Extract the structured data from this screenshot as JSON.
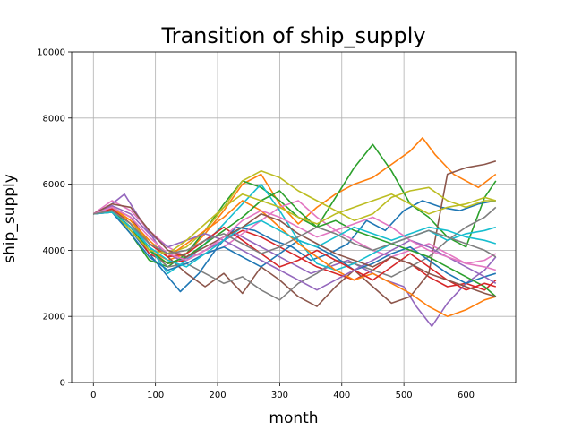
{
  "chart_data": {
    "type": "line",
    "title": "Transition of ship_supply",
    "xlabel": "month",
    "ylabel": "ship_supply",
    "xlim": [
      -35,
      680
    ],
    "ylim": [
      0,
      10000
    ],
    "xticks": [
      "0",
      "100",
      "200",
      "300",
      "400",
      "500",
      "600"
    ],
    "yticks": [
      "0",
      "2000",
      "4000",
      "6000",
      "8000",
      "10000"
    ],
    "grid": true,
    "legend": "none",
    "series": [
      {
        "color": "#1f77b4",
        "x": [
          0,
          30,
          60,
          90,
          120,
          140,
          170,
          200,
          230,
          260,
          290,
          320,
          350,
          380,
          410,
          440,
          470,
          500,
          530,
          560,
          590,
          620,
          648
        ],
        "values": [
          5100,
          5250,
          4600,
          3900,
          3200,
          2750,
          3300,
          4100,
          4700,
          4600,
          4300,
          4100,
          3700,
          3900,
          4200,
          4900,
          4600,
          5200,
          5500,
          5300,
          5200,
          5400,
          5500
        ]
      },
      {
        "color": "#ff7f0e",
        "x": [
          0,
          30,
          60,
          90,
          120,
          150,
          180,
          210,
          240,
          270,
          300,
          330,
          360,
          390,
          420,
          450,
          480,
          510,
          530,
          550,
          580,
          600,
          620,
          648
        ],
        "values": [
          5100,
          5300,
          4800,
          4000,
          3700,
          3900,
          4500,
          5200,
          6000,
          6300,
          5400,
          4800,
          5300,
          5700,
          6000,
          6200,
          6600,
          7000,
          7400,
          6900,
          6300,
          6100,
          5900,
          6300
        ]
      },
      {
        "color": "#2ca02c",
        "x": [
          0,
          30,
          60,
          90,
          120,
          150,
          180,
          210,
          240,
          270,
          300,
          330,
          360,
          390,
          420,
          450,
          480,
          510,
          540,
          570,
          600,
          630,
          648
        ],
        "values": [
          5100,
          5200,
          4500,
          3700,
          3500,
          3900,
          4600,
          5400,
          6100,
          5900,
          5500,
          5000,
          4700,
          5600,
          6500,
          7200,
          6400,
          5400,
          5000,
          4400,
          4100,
          5600,
          6100
        ]
      },
      {
        "color": "#d62728",
        "x": [
          0,
          30,
          60,
          90,
          120,
          150,
          180,
          210,
          240,
          270,
          300,
          330,
          360,
          390,
          420,
          450,
          480,
          510,
          540,
          570,
          600,
          630,
          648
        ],
        "values": [
          5100,
          5150,
          4700,
          3900,
          3600,
          3700,
          4000,
          4300,
          4600,
          4400,
          4100,
          3800,
          3500,
          3300,
          3100,
          3400,
          3800,
          3600,
          3200,
          2900,
          3000,
          2800,
          3100
        ]
      },
      {
        "color": "#9467bd",
        "x": [
          0,
          30,
          50,
          80,
          110,
          140,
          170,
          200,
          230,
          260,
          290,
          320,
          350,
          380,
          410,
          440,
          470,
          500,
          520,
          545,
          570,
          600,
          630,
          648
        ],
        "values": [
          5100,
          5400,
          5700,
          4800,
          4000,
          3700,
          3900,
          4200,
          4500,
          4200,
          3900,
          3600,
          3300,
          3500,
          3700,
          3400,
          3100,
          2900,
          2300,
          1700,
          2400,
          3000,
          3400,
          3800
        ]
      },
      {
        "color": "#8c564b",
        "x": [
          0,
          30,
          60,
          90,
          120,
          150,
          180,
          210,
          240,
          270,
          300,
          330,
          360,
          390,
          420,
          450,
          480,
          510,
          540,
          570,
          600,
          630,
          648
        ],
        "values": [
          5100,
          5300,
          5000,
          4200,
          3800,
          3300,
          2900,
          3300,
          2700,
          3500,
          3100,
          2600,
          2300,
          2900,
          3400,
          2900,
          2400,
          2600,
          3300,
          6300,
          6500,
          6600,
          6700
        ]
      },
      {
        "color": "#e377c2",
        "x": [
          0,
          30,
          60,
          90,
          120,
          150,
          180,
          210,
          240,
          270,
          300,
          330,
          360,
          390,
          420,
          450,
          480,
          510,
          540,
          570,
          600,
          630,
          648
        ],
        "values": [
          5100,
          5500,
          5200,
          4600,
          4100,
          3800,
          3900,
          4100,
          4500,
          4900,
          5300,
          5500,
          5000,
          4600,
          4300,
          4000,
          3800,
          4000,
          4200,
          3900,
          3600,
          3700,
          3900
        ]
      },
      {
        "color": "#7f7f7f",
        "x": [
          0,
          30,
          60,
          90,
          120,
          150,
          180,
          210,
          240,
          270,
          300,
          330,
          360,
          390,
          420,
          450,
          480,
          510,
          540,
          570,
          600,
          630,
          648
        ],
        "values": [
          5100,
          5200,
          4700,
          4000,
          3500,
          3600,
          3300,
          3000,
          3200,
          2800,
          2500,
          3000,
          3300,
          3700,
          3600,
          3400,
          3200,
          3500,
          3800,
          4300,
          4700,
          5000,
          5300
        ]
      },
      {
        "color": "#bcbd22",
        "x": [
          0,
          30,
          60,
          90,
          120,
          150,
          180,
          210,
          240,
          270,
          300,
          330,
          360,
          390,
          420,
          450,
          480,
          510,
          540,
          570,
          600,
          630,
          648
        ],
        "values": [
          5100,
          5250,
          4900,
          4200,
          3900,
          4100,
          4600,
          5300,
          6100,
          6400,
          6200,
          5800,
          5500,
          5200,
          4900,
          5100,
          5600,
          5800,
          5900,
          5500,
          5300,
          5500,
          5500
        ]
      },
      {
        "color": "#17becf",
        "x": [
          0,
          30,
          60,
          90,
          120,
          150,
          180,
          210,
          240,
          270,
          300,
          330,
          360,
          390,
          420,
          450,
          480,
          510,
          540,
          570,
          600,
          630,
          648
        ],
        "values": [
          5100,
          5200,
          4800,
          4100,
          3300,
          3700,
          4200,
          4800,
          5400,
          6000,
          5200,
          4300,
          3600,
          3400,
          3600,
          3900,
          4200,
          4400,
          4600,
          4300,
          4500,
          4600,
          4700
        ]
      },
      {
        "color": "#1f77b4",
        "x": [
          0,
          30,
          60,
          90,
          120,
          150,
          180,
          210,
          240,
          270,
          300,
          330,
          360,
          390,
          420,
          450,
          480,
          510,
          540,
          570,
          600,
          630,
          648
        ],
        "values": [
          5100,
          5150,
          4500,
          3800,
          3400,
          3600,
          3900,
          4100,
          3800,
          3500,
          3900,
          4300,
          4100,
          3800,
          3400,
          3600,
          3900,
          4100,
          3700,
          3300,
          3000,
          3200,
          3300
        ]
      },
      {
        "color": "#ff7f0e",
        "x": [
          0,
          30,
          60,
          90,
          120,
          150,
          180,
          210,
          240,
          270,
          300,
          330,
          360,
          390,
          420,
          450,
          480,
          510,
          540,
          570,
          600,
          630,
          648
        ],
        "values": [
          5100,
          5300,
          4900,
          4300,
          3800,
          4200,
          4600,
          5000,
          5500,
          5200,
          4700,
          4200,
          3800,
          3400,
          3100,
          3300,
          3000,
          2700,
          2300,
          2000,
          2200,
          2500,
          2600
        ]
      },
      {
        "color": "#2ca02c",
        "x": [
          0,
          30,
          60,
          90,
          120,
          150,
          180,
          210,
          240,
          270,
          300,
          330,
          360,
          390,
          420,
          450,
          480,
          510,
          540,
          570,
          600,
          630,
          648
        ],
        "values": [
          5100,
          5200,
          4700,
          4000,
          3600,
          3800,
          4200,
          4600,
          5000,
          5500,
          5800,
          5200,
          4700,
          4900,
          4600,
          4400,
          4200,
          4000,
          3800,
          3500,
          3200,
          2900,
          2600
        ]
      },
      {
        "color": "#d62728",
        "x": [
          0,
          30,
          60,
          90,
          120,
          150,
          180,
          210,
          240,
          270,
          300,
          330,
          360,
          390,
          420,
          450,
          480,
          510,
          540,
          570,
          600,
          630,
          648
        ],
        "values": [
          5100,
          5250,
          4800,
          4200,
          3800,
          3900,
          4300,
          4700,
          4300,
          3900,
          3500,
          3700,
          4000,
          3700,
          3400,
          3100,
          3500,
          3900,
          3500,
          3100,
          2800,
          3000,
          2900
        ]
      },
      {
        "color": "#9467bd",
        "x": [
          0,
          30,
          60,
          90,
          120,
          150,
          180,
          210,
          240,
          270,
          300,
          330,
          360,
          390,
          420,
          450,
          480,
          510,
          540,
          570,
          600,
          630,
          648
        ],
        "values": [
          5100,
          5350,
          5100,
          4500,
          4100,
          4300,
          4500,
          4300,
          4000,
          3700,
          3400,
          3100,
          2800,
          3100,
          3400,
          3700,
          4000,
          4300,
          4100,
          3800,
          3500,
          3200,
          3000
        ]
      },
      {
        "color": "#bcbd22",
        "x": [
          0,
          30,
          60,
          90,
          120,
          150,
          180,
          210,
          240,
          270,
          300,
          330,
          360,
          390,
          420,
          450,
          480,
          510,
          540,
          570,
          600,
          630,
          648
        ],
        "values": [
          5100,
          5200,
          4600,
          4000,
          3900,
          4300,
          4800,
          5300,
          5700,
          5500,
          5300,
          5000,
          4800,
          5100,
          5300,
          5500,
          5700,
          5400,
          5100,
          5300,
          5400,
          5600,
          5500
        ]
      },
      {
        "color": "#17becf",
        "x": [
          0,
          30,
          60,
          90,
          120,
          150,
          180,
          210,
          240,
          270,
          300,
          330,
          360,
          390,
          420,
          450,
          480,
          510,
          540,
          570,
          600,
          630,
          648
        ],
        "values": [
          5100,
          5150,
          4700,
          4100,
          3700,
          3500,
          3900,
          4300,
          4700,
          4900,
          4600,
          4300,
          4100,
          4400,
          4700,
          4500,
          4300,
          4500,
          4700,
          4600,
          4400,
          4300,
          4200
        ]
      },
      {
        "color": "#8c564b",
        "x": [
          0,
          30,
          60,
          90,
          120,
          150,
          180,
          210,
          240,
          270,
          300,
          330,
          360,
          390,
          420,
          450,
          480,
          510,
          540,
          570,
          600,
          630,
          648
        ],
        "values": [
          5100,
          5400,
          5300,
          4600,
          4000,
          3800,
          4100,
          4400,
          4700,
          5100,
          4900,
          4500,
          4200,
          3900,
          3700,
          3500,
          3800,
          3600,
          3300,
          3100,
          2900,
          2700,
          2600
        ]
      },
      {
        "color": "#e377c2",
        "x": [
          0,
          30,
          60,
          90,
          120,
          150,
          180,
          210,
          240,
          270,
          300,
          330,
          360,
          390,
          420,
          450,
          480,
          510,
          540,
          570,
          600,
          630,
          648
        ],
        "values": [
          5100,
          5300,
          5000,
          4400,
          3900,
          3700,
          4000,
          4400,
          4900,
          5200,
          5000,
          4700,
          4400,
          4600,
          4800,
          5000,
          4700,
          4300,
          4000,
          3800,
          3600,
          3500,
          3400
        ]
      },
      {
        "color": "#7f7f7f",
        "x": [
          0,
          30,
          60,
          90,
          120,
          150,
          180,
          210,
          240,
          270,
          300,
          330,
          360,
          390,
          420,
          450,
          480,
          510,
          540,
          570,
          600,
          630,
          648
        ],
        "values": [
          5100,
          5200,
          4800,
          4200,
          3900,
          4000,
          4300,
          4500,
          4200,
          3900,
          4100,
          4400,
          4700,
          4500,
          4200,
          4000,
          4200,
          4400,
          4600,
          4400,
          4200,
          4000,
          3800
        ]
      }
    ]
  }
}
